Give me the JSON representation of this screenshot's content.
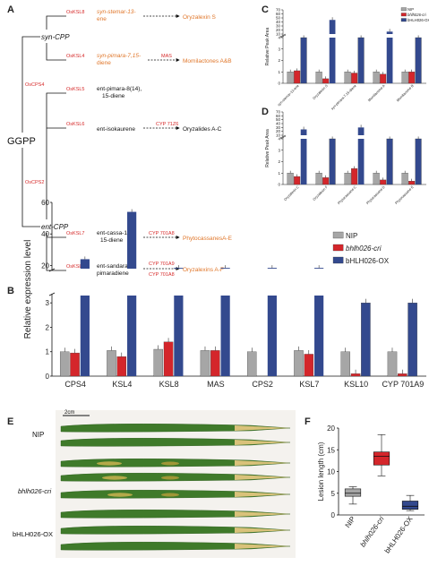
{
  "panels": {
    "a": "A",
    "b": "B",
    "c": "C",
    "d": "D",
    "e": "E",
    "f": "F"
  },
  "pathway": {
    "ggpp": "GGPP",
    "syn_cpp": "syn-CPP",
    "ent_cpp": "ent-CPP",
    "oscps4": "OsCPS4",
    "oscps2": "OsCPS2",
    "branches": [
      {
        "enzyme": "OsKSL8",
        "product1": "syn-stemar-13-",
        "product2": "ene",
        "step": "",
        "end": "Oryzalexin S"
      },
      {
        "enzyme": "OsKSL4",
        "product1": "syn-pimara-7,15-",
        "product2": "diene",
        "step": "MAS",
        "end": "Momilactones A&B"
      },
      {
        "enzyme": "OsKSL5",
        "product1": "ent-pimara-8(14),",
        "product2": "15-diene",
        "step": "",
        "end": ""
      },
      {
        "enzyme": "OsKSL6",
        "product1": "ent-isokaurene",
        "product2": "",
        "step": "CYP 71Z6",
        "end": "Oryzalides A-C"
      },
      {
        "enzyme": "OsKSL7",
        "product1": "ent-cassa-12,",
        "product2": "15-diene",
        "step": "CYP 701A8",
        "end": "PhytocassanesA-E"
      },
      {
        "enzyme": "OsKSL10",
        "product1": "ent-sandaraco-",
        "product2": "pimaradiene",
        "step": "CYP 701A9",
        "step2": "CYP 701A8",
        "end": "Oryzalexins A-F"
      }
    ]
  },
  "chart_data": [
    {
      "type": "bar",
      "title": "",
      "xlabel": "",
      "ylabel": "Relative expression level",
      "categories": [
        "CPS4",
        "KSL4",
        "KSL8",
        "MAS",
        "CPS2",
        "KSL7",
        "KSL10",
        "CYP 701A9"
      ],
      "y_ticks_lower": [
        "0",
        "1",
        "2",
        "3"
      ],
      "y_ticks_upper": [
        "20",
        "40",
        "60"
      ],
      "axis_break": [
        4,
        18
      ],
      "series": [
        {
          "name": "NIP",
          "color": "#a6a6a6",
          "values": [
            1.0,
            1.05,
            1.1,
            1.05,
            1.0,
            1.05,
            1.0,
            1.0
          ]
        },
        {
          "name": "bhlh026-cri",
          "color": "#d4262b",
          "values": [
            0.95,
            0.8,
            1.4,
            1.05,
            null,
            0.9,
            0.1,
            0.1
          ]
        },
        {
          "name": "bHLH026-OX",
          "color": "#33498e",
          "values": [
            24,
            54,
            4,
            4,
            14,
            4,
            3.0,
            3.0
          ]
        }
      ]
    },
    {
      "type": "bar",
      "ylabel": "Relative Peak Area",
      "categories": [
        "syn-stemar-13-ene",
        "Oryzalexin S",
        "syn-pimara-7,15-diene",
        "Momilactone A",
        "Momilactone B"
      ],
      "y_ticks_lower": [
        "0",
        "1",
        "2",
        "3",
        "4"
      ],
      "y_ticks_upper": [
        "10",
        "20",
        "30",
        "40",
        "50",
        "60",
        "70"
      ],
      "series": [
        {
          "name": "NIP",
          "color": "#a6a6a6",
          "values": [
            1.0,
            1.0,
            1.0,
            1.0,
            1.0
          ]
        },
        {
          "name": "bhlh026-cri",
          "color": "#d4262b",
          "values": [
            1.1,
            0.4,
            0.9,
            0.8,
            1.0
          ]
        },
        {
          "name": "bHLH026-OX",
          "color": "#33498e",
          "values": [
            4,
            45,
            4,
            16,
            4
          ]
        }
      ]
    },
    {
      "type": "bar",
      "ylabel": "Relative Peak Area",
      "categories": [
        "Oryzalexin C",
        "Oryzalexin F",
        "Phytocassane C",
        "Phytocassane D",
        "Phytocassane E"
      ],
      "y_ticks_lower": [
        "0",
        "1",
        "2",
        "3",
        "4"
      ],
      "y_ticks_upper": [
        "10",
        "20",
        "30",
        "40",
        "50",
        "60",
        "70"
      ],
      "series": [
        {
          "name": "NIP",
          "color": "#a6a6a6",
          "values": [
            1.0,
            1.0,
            1.0,
            1.0,
            1.0
          ]
        },
        {
          "name": "bhlh026-cri",
          "color": "#d4262b",
          "values": [
            0.7,
            0.6,
            1.4,
            0.4,
            0.3
          ]
        },
        {
          "name": "bHLH026-OX",
          "color": "#33498e",
          "values": [
            25,
            4,
            30,
            4,
            4
          ]
        }
      ]
    },
    {
      "type": "box",
      "ylabel": "Lesion length (cm)",
      "categories": [
        "NIP",
        "bhlh026-cri",
        "bHLH026-OX"
      ],
      "y_ticks": [
        "0",
        "5",
        "10",
        "15",
        "20"
      ],
      "ylim": [
        0,
        20
      ],
      "boxes": [
        {
          "color": "#a6a6a6",
          "min": 2.5,
          "q1": 4.3,
          "median": 5.0,
          "q3": 6.0,
          "max": 6.5
        },
        {
          "color": "#d4262b",
          "min": 9.0,
          "q1": 11.5,
          "median": 13.5,
          "q3": 14.5,
          "max": 18.5
        },
        {
          "color": "#33498e",
          "min": 1.0,
          "q1": 1.3,
          "median": 2.0,
          "q3": 3.2,
          "max": 4.5
        }
      ]
    }
  ],
  "leaves": {
    "scale": "2cm",
    "rows": [
      "NIP",
      "bhlh026-cri",
      "bHLH026-OX"
    ]
  },
  "colors": {
    "nip": "#a6a6a6",
    "cri": "#d4262b",
    "ox": "#33498e",
    "accent_red": "#d62a2a",
    "accent_orange": "#e0772b"
  }
}
